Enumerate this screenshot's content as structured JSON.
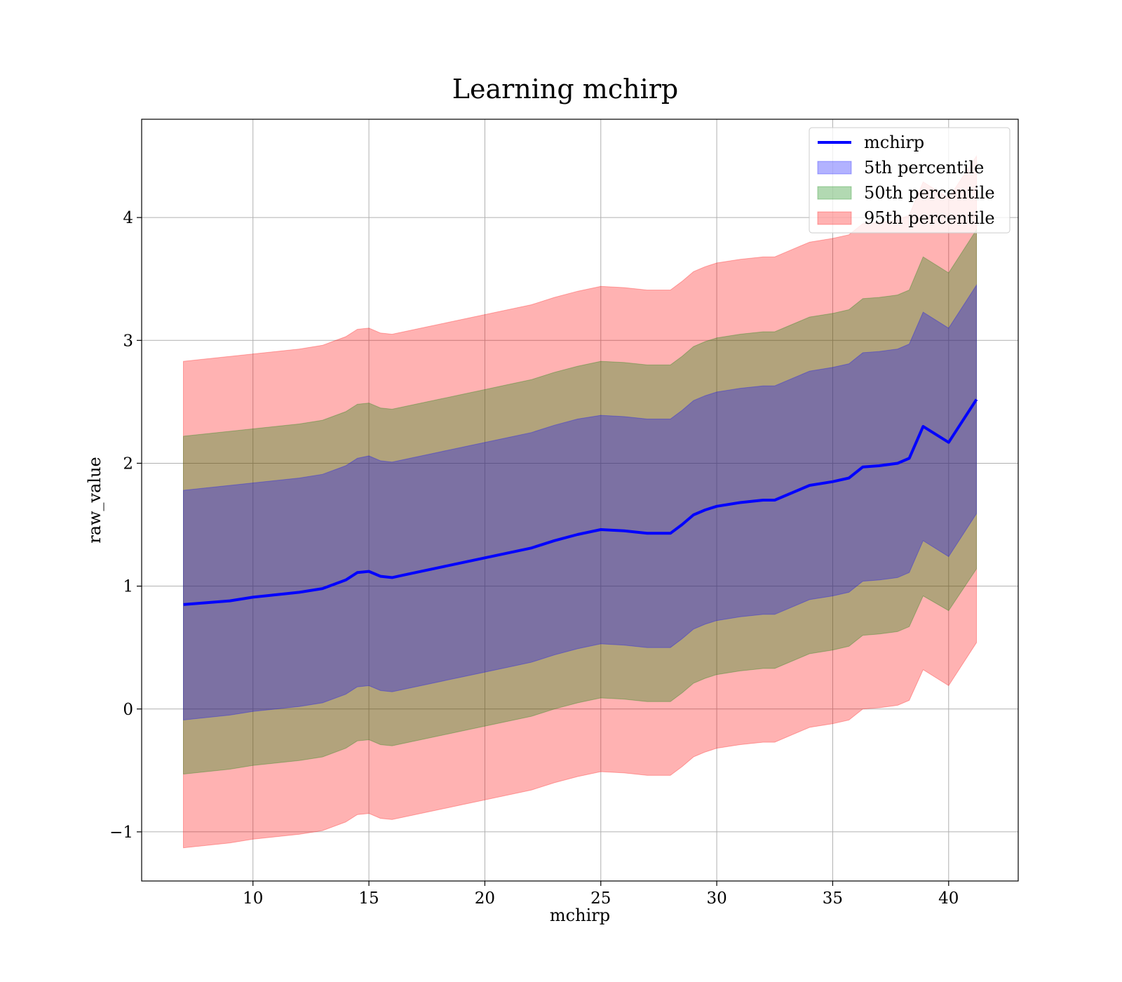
{
  "chart_data": {
    "type": "line",
    "title": "Learning mchirp",
    "xlabel": "mchirp",
    "ylabel": "raw_value",
    "xlim": [
      5.2,
      43.0
    ],
    "ylim": [
      -1.4,
      4.8
    ],
    "xticks": [
      10,
      15,
      20,
      25,
      30,
      35,
      40
    ],
    "yticks": [
      -1,
      0,
      1,
      2,
      3,
      4
    ],
    "xtick_labels": [
      "10",
      "15",
      "20",
      "25",
      "30",
      "35",
      "40"
    ],
    "ytick_labels": [
      "−1",
      "0",
      "1",
      "2",
      "3",
      "4"
    ],
    "grid": true,
    "legend_position": "upper right",
    "legend": [
      {
        "label": "mchirp",
        "kind": "line",
        "color": "#0000ff"
      },
      {
        "label": "5th percentile",
        "kind": "patch",
        "color": "#0000ff"
      },
      {
        "label": "50th percentile",
        "kind": "patch",
        "color": "#008000"
      },
      {
        "label": "95th percentile",
        "kind": "patch",
        "color": "#ff0000"
      }
    ],
    "colors": {
      "line": "#0000ff",
      "band_5th": "#0000ff",
      "band_50th": "#008000",
      "band_95th": "#ff0000"
    },
    "x": [
      7.0,
      9.0,
      10.0,
      11.0,
      12.0,
      13.0,
      14.0,
      14.5,
      15.0,
      15.5,
      16.0,
      16.5,
      17.0,
      18.0,
      19.0,
      20.0,
      21.0,
      22.0,
      23.0,
      24.0,
      25.0,
      26.0,
      27.0,
      28.0,
      28.5,
      29.0,
      29.5,
      30.0,
      31.0,
      32.0,
      32.5,
      33.0,
      34.0,
      35.0,
      35.7,
      36.3,
      37.0,
      37.8,
      38.3,
      38.9,
      40.0,
      41.2
    ],
    "series": [
      {
        "name": "mchirp",
        "values": [
          0.85,
          0.88,
          0.91,
          0.93,
          0.95,
          0.98,
          1.05,
          1.11,
          1.12,
          1.08,
          1.07,
          1.09,
          1.11,
          1.15,
          1.19,
          1.23,
          1.27,
          1.31,
          1.37,
          1.42,
          1.46,
          1.45,
          1.43,
          1.43,
          1.5,
          1.58,
          1.62,
          1.65,
          1.68,
          1.7,
          1.7,
          1.74,
          1.82,
          1.85,
          1.88,
          1.97,
          1.98,
          2.0,
          2.04,
          2.3,
          2.17,
          2.52
        ]
      },
      {
        "name": "5th percentile",
        "upper": [
          1.78,
          1.82,
          1.84,
          1.86,
          1.88,
          1.91,
          1.98,
          2.04,
          2.06,
          2.02,
          2.01,
          2.03,
          2.05,
          2.09,
          2.13,
          2.17,
          2.21,
          2.25,
          2.31,
          2.36,
          2.39,
          2.38,
          2.36,
          2.36,
          2.43,
          2.51,
          2.55,
          2.58,
          2.61,
          2.63,
          2.63,
          2.67,
          2.75,
          2.78,
          2.81,
          2.9,
          2.91,
          2.93,
          2.97,
          3.23,
          3.1,
          3.45
        ],
        "lower": [
          -0.09,
          -0.05,
          -0.02,
          0.0,
          0.02,
          0.05,
          0.12,
          0.18,
          0.19,
          0.15,
          0.14,
          0.16,
          0.18,
          0.22,
          0.26,
          0.3,
          0.34,
          0.38,
          0.44,
          0.49,
          0.53,
          0.52,
          0.5,
          0.5,
          0.57,
          0.65,
          0.69,
          0.72,
          0.75,
          0.77,
          0.77,
          0.81,
          0.89,
          0.92,
          0.95,
          1.04,
          1.05,
          1.07,
          1.11,
          1.37,
          1.24,
          1.59
        ]
      },
      {
        "name": "50th percentile",
        "upper": [
          2.22,
          2.26,
          2.28,
          2.3,
          2.32,
          2.35,
          2.42,
          2.48,
          2.49,
          2.45,
          2.44,
          2.46,
          2.48,
          2.52,
          2.56,
          2.6,
          2.64,
          2.68,
          2.74,
          2.79,
          2.83,
          2.82,
          2.8,
          2.8,
          2.87,
          2.95,
          2.99,
          3.02,
          3.05,
          3.07,
          3.07,
          3.11,
          3.19,
          3.22,
          3.25,
          3.34,
          3.35,
          3.37,
          3.41,
          3.68,
          3.55,
          3.9
        ],
        "lower": [
          -0.53,
          -0.49,
          -0.46,
          -0.44,
          -0.42,
          -0.39,
          -0.32,
          -0.26,
          -0.25,
          -0.29,
          -0.3,
          -0.28,
          -0.26,
          -0.22,
          -0.18,
          -0.14,
          -0.1,
          -0.06,
          0.0,
          0.05,
          0.09,
          0.08,
          0.06,
          0.06,
          0.13,
          0.21,
          0.25,
          0.28,
          0.31,
          0.33,
          0.33,
          0.37,
          0.45,
          0.48,
          0.51,
          0.6,
          0.61,
          0.63,
          0.67,
          0.92,
          0.8,
          1.14
        ]
      },
      {
        "name": "95th percentile",
        "upper": [
          2.83,
          2.87,
          2.89,
          2.91,
          2.93,
          2.96,
          3.03,
          3.09,
          3.1,
          3.06,
          3.05,
          3.07,
          3.09,
          3.13,
          3.17,
          3.21,
          3.25,
          3.29,
          3.35,
          3.4,
          3.44,
          3.43,
          3.41,
          3.41,
          3.48,
          3.56,
          3.6,
          3.63,
          3.66,
          3.68,
          3.68,
          3.72,
          3.8,
          3.83,
          3.86,
          3.95,
          3.96,
          3.98,
          4.02,
          4.29,
          4.16,
          4.5
        ],
        "lower": [
          -1.13,
          -1.09,
          -1.06,
          -1.04,
          -1.02,
          -0.99,
          -0.92,
          -0.86,
          -0.85,
          -0.89,
          -0.9,
          -0.88,
          -0.86,
          -0.82,
          -0.78,
          -0.74,
          -0.7,
          -0.66,
          -0.6,
          -0.55,
          -0.51,
          -0.52,
          -0.54,
          -0.54,
          -0.47,
          -0.39,
          -0.35,
          -0.32,
          -0.29,
          -0.27,
          -0.27,
          -0.23,
          -0.15,
          -0.12,
          -0.09,
          0.0,
          0.01,
          0.03,
          0.07,
          0.32,
          0.19,
          0.54
        ]
      }
    ]
  }
}
